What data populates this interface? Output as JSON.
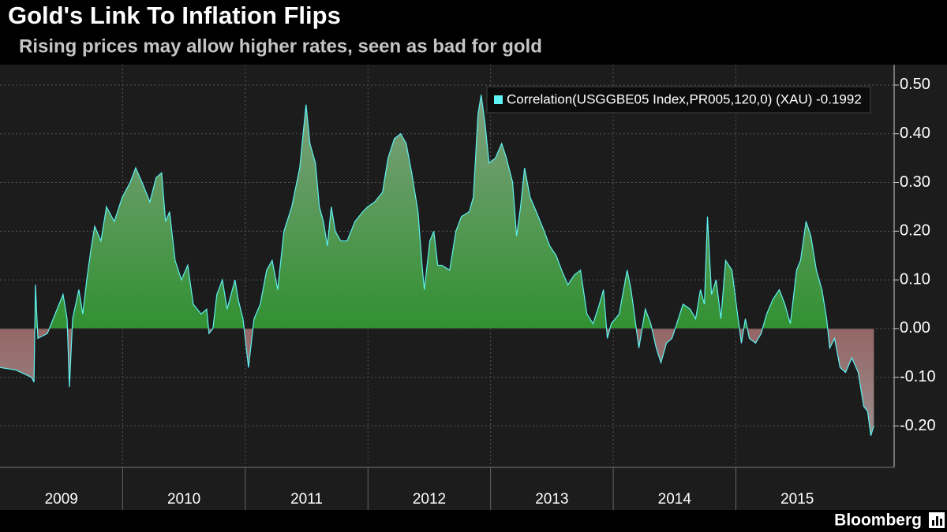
{
  "chart_data": {
    "type": "area",
    "title": "Gold's Link To Inflation Flips",
    "subtitle": "Rising prices may allow higher rates, seen as bad for gold",
    "source": "Bloomberg",
    "xlim": [
      2009.0,
      2016.29
    ],
    "ylim": [
      -0.285,
      0.542
    ],
    "yticks": [
      {
        "value": -0.2,
        "label": "-0.20"
      },
      {
        "value": -0.1,
        "label": "-0.10"
      },
      {
        "value": 0,
        "label": "0.00"
      },
      {
        "value": 0.1,
        "label": "0.10"
      },
      {
        "value": 0.2,
        "label": "0.20"
      },
      {
        "value": 0.3,
        "label": "0.30"
      },
      {
        "value": 0.4,
        "label": "0.40"
      },
      {
        "value": 0.5,
        "label": "0.50"
      }
    ],
    "xticks": [
      {
        "value": 2009.5,
        "label": "2009"
      },
      {
        "value": 2010.5,
        "label": "2010"
      },
      {
        "value": 2011.5,
        "label": "2011"
      },
      {
        "value": 2012.5,
        "label": "2012"
      },
      {
        "value": 2013.5,
        "label": "2013"
      },
      {
        "value": 2014.5,
        "label": "2014"
      },
      {
        "value": 2015.5,
        "label": "2015"
      }
    ],
    "grid": true,
    "legend": "top-right",
    "series": [
      {
        "name": "Correlation(USGGBE05 Index,PR005,120,0) (XAU) -0.1992",
        "color": "#5ff2f2",
        "x": [
          2009.0,
          2009.129,
          2009.257,
          2009.277,
          2009.289,
          2009.309,
          2009.386,
          2009.45,
          2009.514,
          2009.547,
          2009.566,
          2009.592,
          2009.643,
          2009.675,
          2009.707,
          2009.74,
          2009.772,
          2009.823,
          2009.868,
          2009.932,
          2009.997,
          2010.061,
          2010.106,
          2010.158,
          2010.222,
          2010.273,
          2010.318,
          2010.35,
          2010.383,
          2010.428,
          2010.479,
          2010.531,
          2010.576,
          2010.64,
          2010.685,
          2010.704,
          2010.736,
          2010.768,
          2010.813,
          2010.852,
          2010.916,
          2010.942,
          2010.981,
          2011.026,
          2011.071,
          2011.122,
          2011.174,
          2011.219,
          2011.264,
          2011.315,
          2011.379,
          2011.444,
          2011.495,
          2011.527,
          2011.572,
          2011.604,
          2011.637,
          2011.669,
          2011.701,
          2011.733,
          2011.778,
          2011.83,
          2011.894,
          2011.958,
          2011.997,
          2012.055,
          2012.119,
          2012.164,
          2012.215,
          2012.267,
          2012.312,
          2012.357,
          2012.408,
          2012.441,
          2012.46,
          2012.505,
          2012.537,
          2012.569,
          2012.601,
          2012.666,
          2012.717,
          2012.762,
          2012.826,
          2012.859,
          2012.897,
          2012.923,
          2012.955,
          2012.987,
          2013.039,
          2013.09,
          2013.129,
          2013.18,
          2013.212,
          2013.244,
          2013.277,
          2013.322,
          2013.373,
          2013.437,
          2013.482,
          2013.534,
          2013.579,
          2013.63,
          2013.682,
          2013.733,
          2013.785,
          2013.836,
          2013.887,
          2013.92,
          2013.952,
          2013.984,
          2014.048,
          2014.113,
          2014.145,
          2014.177,
          2014.209,
          2014.261,
          2014.306,
          2014.351,
          2014.389,
          2014.434,
          2014.479,
          2014.518,
          2014.569,
          2014.627,
          2014.672,
          2014.711,
          2014.743,
          2014.768,
          2014.801,
          2014.839,
          2014.878,
          2014.916,
          2014.968,
          2015.013,
          2015.045,
          2015.077,
          2015.109,
          2015.161,
          2015.206,
          2015.251,
          2015.302,
          2015.354,
          2015.399,
          2015.444,
          2015.495,
          2015.527,
          2015.572,
          2015.611,
          2015.656,
          2015.701,
          2015.74,
          2015.765,
          2015.804,
          2015.849,
          2015.894,
          2015.945,
          2015.997,
          2016.042,
          2016.074,
          2016.1,
          2016.125
        ],
        "values": [
          -0.08,
          -0.085,
          -0.1,
          -0.11,
          0.09,
          -0.02,
          -0.01,
          0.03,
          0.07,
          0.02,
          -0.12,
          0.02,
          0.08,
          0.03,
          0.1,
          0.16,
          0.21,
          0.18,
          0.25,
          0.22,
          0.27,
          0.3,
          0.33,
          0.3,
          0.26,
          0.31,
          0.32,
          0.22,
          0.24,
          0.14,
          0.1,
          0.13,
          0.05,
          0.03,
          0.04,
          -0.01,
          0.0,
          0.07,
          0.1,
          0.04,
          0.1,
          0.06,
          0.02,
          -0.08,
          0.02,
          0.05,
          0.12,
          0.14,
          0.08,
          0.2,
          0.25,
          0.33,
          0.46,
          0.38,
          0.34,
          0.25,
          0.22,
          0.17,
          0.25,
          0.2,
          0.18,
          0.18,
          0.22,
          0.24,
          0.25,
          0.26,
          0.28,
          0.35,
          0.39,
          0.4,
          0.38,
          0.32,
          0.24,
          0.13,
          0.08,
          0.18,
          0.2,
          0.13,
          0.13,
          0.12,
          0.2,
          0.23,
          0.24,
          0.27,
          0.44,
          0.48,
          0.42,
          0.34,
          0.35,
          0.38,
          0.35,
          0.3,
          0.19,
          0.25,
          0.33,
          0.27,
          0.24,
          0.2,
          0.17,
          0.15,
          0.12,
          0.09,
          0.11,
          0.12,
          0.03,
          0.01,
          0.05,
          0.08,
          -0.02,
          0.01,
          0.03,
          0.12,
          0.08,
          0.02,
          -0.04,
          0.04,
          0.01,
          -0.04,
          -0.07,
          -0.03,
          -0.02,
          0.01,
          0.05,
          0.04,
          0.02,
          0.08,
          0.05,
          0.23,
          0.07,
          0.1,
          0.02,
          0.14,
          0.12,
          0.03,
          -0.03,
          0.02,
          -0.02,
          -0.03,
          -0.01,
          0.03,
          0.06,
          0.08,
          0.05,
          0.01,
          0.12,
          0.14,
          0.22,
          0.19,
          0.12,
          0.08,
          0.02,
          -0.04,
          -0.02,
          -0.08,
          -0.09,
          -0.06,
          -0.09,
          -0.16,
          -0.17,
          -0.22,
          -0.1992
        ]
      }
    ]
  }
}
